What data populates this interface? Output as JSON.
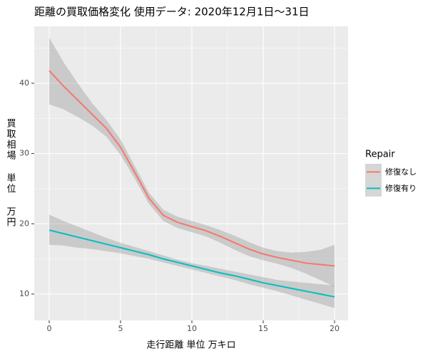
{
  "chart_data": {
    "type": "smooth",
    "title": "距離の買取価格変化 使用データ: 2020年12月1日～31日",
    "x_label": "走行距離 単位 万キロ",
    "y_label": "買取相場 単位 万円",
    "legend_title": "Repair",
    "grid": true,
    "band_color": "#999999",
    "x": [
      0,
      1,
      2,
      3,
      4,
      5,
      6,
      7,
      8,
      9,
      10,
      11,
      12,
      13,
      14,
      15,
      16,
      17,
      18,
      19,
      20
    ],
    "xlim": [
      -1.05,
      20.95
    ],
    "xticks": [
      0,
      5,
      10,
      15,
      20
    ],
    "ylim": [
      6.25,
      48.1
    ],
    "yticks": [
      10,
      20,
      30,
      40
    ],
    "series": [
      {
        "name": "修復なし",
        "color": "#F8766D",
        "values": [
          41.8,
          39.6,
          37.6,
          35.6,
          33.6,
          30.9,
          27.3,
          23.6,
          21.2,
          20.2,
          19.6,
          19.0,
          18.2,
          17.3,
          16.4,
          15.7,
          15.2,
          14.8,
          14.4,
          14.2,
          14.0
        ],
        "upper": [
          46.5,
          43.0,
          40.0,
          37.2,
          34.8,
          32.0,
          28.2,
          24.4,
          22.0,
          21.0,
          20.4,
          19.8,
          19.1,
          18.3,
          17.4,
          16.6,
          16.1,
          15.9,
          16.0,
          16.3,
          17.0
        ],
        "lower": [
          37.0,
          36.3,
          35.2,
          34.0,
          32.4,
          29.8,
          26.4,
          22.8,
          20.4,
          19.4,
          18.8,
          18.2,
          17.3,
          16.3,
          15.4,
          14.8,
          14.3,
          13.7,
          12.9,
          12.0,
          11.0
        ]
      },
      {
        "name": "修復有り",
        "color": "#00BFC4",
        "values": [
          19.1,
          18.6,
          18.1,
          17.6,
          17.1,
          16.6,
          16.1,
          15.6,
          15.0,
          14.5,
          14.0,
          13.5,
          13.0,
          12.6,
          12.1,
          11.6,
          11.2,
          10.8,
          10.4,
          10.0,
          9.6
        ],
        "upper": [
          21.3,
          20.4,
          19.6,
          18.8,
          18.0,
          17.3,
          16.7,
          16.1,
          15.5,
          14.9,
          14.4,
          14.0,
          13.6,
          13.2,
          12.8,
          12.4,
          12.0,
          11.8,
          11.6,
          11.4,
          11.2
        ],
        "lower": [
          17.0,
          16.9,
          16.6,
          16.4,
          16.1,
          15.8,
          15.4,
          15.0,
          14.5,
          14.0,
          13.5,
          13.0,
          12.5,
          12.0,
          11.4,
          10.9,
          10.4,
          9.8,
          9.2,
          8.6,
          8.0
        ]
      }
    ]
  }
}
